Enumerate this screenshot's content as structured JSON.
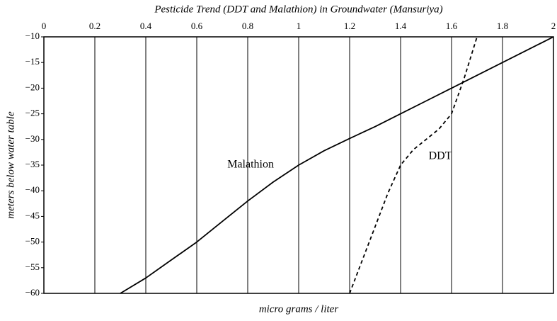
{
  "chart_data": {
    "type": "line",
    "title": "Pesticide Trend (DDT and Malathion) in Groundwater (Mansuriya)",
    "x_label": "micro grams / liter",
    "y_label": "meters below water table",
    "xlim": [
      0,
      2
    ],
    "xticks": [
      0,
      0.2,
      0.4,
      0.6,
      0.8,
      1,
      1.2,
      1.4,
      1.6,
      1.8,
      2
    ],
    "ylim": [
      -60,
      -10
    ],
    "yticks": [
      {
        "value": -10,
        "label": "−10"
      },
      {
        "value": -15,
        "label": "−15"
      },
      {
        "value": -20,
        "label": "−20"
      },
      {
        "value": -25,
        "label": "−25"
      },
      {
        "value": -30,
        "label": "−30"
      },
      {
        "value": -35,
        "label": "−35"
      },
      {
        "value": -40,
        "label": "−40"
      },
      {
        "value": -45,
        "label": "−45"
      },
      {
        "value": -50,
        "label": "−50"
      },
      {
        "value": -55,
        "label": "−55"
      },
      {
        "value": -60,
        "label": "−60"
      }
    ],
    "x_axis_position": "top",
    "grid": "x",
    "series": [
      {
        "name": "Malathion",
        "color": "#000000",
        "dashed": false,
        "x": [
          0.3,
          0.4,
          0.5,
          0.6,
          0.7,
          0.8,
          0.9,
          1.0,
          1.1,
          1.2,
          1.3,
          1.4,
          1.5,
          1.6,
          1.7,
          1.8,
          1.9,
          2.0
        ],
        "values": [
          -60,
          -57,
          -53.5,
          -50,
          -46,
          -42,
          -38.3,
          -35,
          -32.2,
          -29.8,
          -27.5,
          -25,
          -22.5,
          -20,
          -17.5,
          -15,
          -12.5,
          -10
        ]
      },
      {
        "name": "DDT",
        "color": "#000000",
        "dashed": true,
        "x": [
          1.2,
          1.25,
          1.3,
          1.35,
          1.4,
          1.45,
          1.5,
          1.55,
          1.6,
          1.625,
          1.65,
          1.675,
          1.7
        ],
        "values": [
          -60,
          -53.5,
          -47,
          -40.5,
          -35,
          -32,
          -30,
          -28,
          -25,
          -21.5,
          -18,
          -14,
          -10
        ]
      }
    ]
  }
}
